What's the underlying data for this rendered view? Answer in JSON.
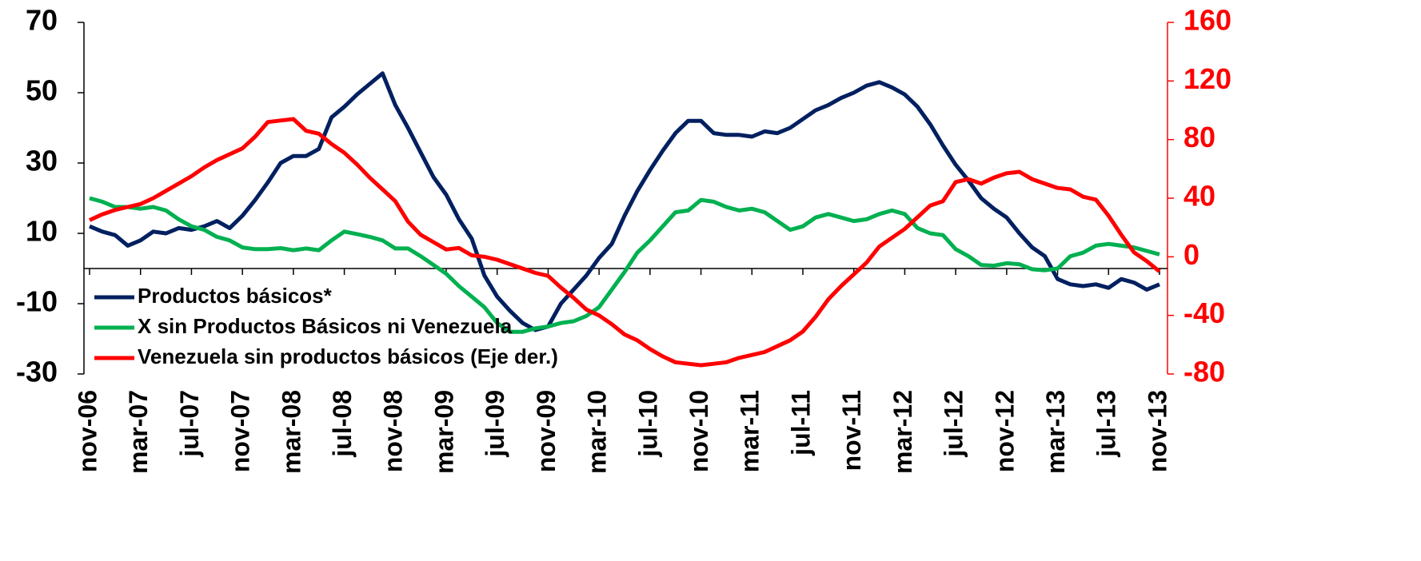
{
  "chart_data": {
    "type": "line",
    "categories": [
      "nov-06",
      null,
      null,
      null,
      "mar-07",
      null,
      null,
      null,
      "jul-07",
      null,
      null,
      null,
      "nov-07",
      null,
      null,
      null,
      "mar-08",
      null,
      null,
      null,
      "jul-08",
      null,
      null,
      null,
      "nov-08",
      null,
      null,
      null,
      "mar-09",
      null,
      null,
      null,
      "jul-09",
      null,
      null,
      null,
      "nov-09",
      null,
      null,
      null,
      "mar-10",
      null,
      null,
      null,
      "jul-10",
      null,
      null,
      null,
      "nov-10",
      null,
      null,
      null,
      "mar-11",
      null,
      null,
      null,
      "jul-11",
      null,
      null,
      null,
      "nov-11",
      null,
      null,
      null,
      "mar-12",
      null,
      null,
      null,
      "jul-12",
      null,
      null,
      null,
      "nov-12",
      null,
      null,
      null,
      "mar-13",
      null,
      null,
      null,
      "jul-13",
      null,
      null,
      null,
      "nov-13"
    ],
    "series": [
      {
        "name": "Productos básicos*",
        "color": "#002060",
        "values": [
          12,
          10.5,
          9.5,
          6.5,
          8,
          10.5,
          10,
          11.5,
          11,
          12,
          13.5,
          11.5,
          15,
          19.5,
          24.5,
          30,
          32,
          32,
          34,
          43,
          46,
          49.5,
          52.5,
          55.5,
          46.5,
          40,
          33,
          26,
          21,
          14,
          8.5,
          -2,
          -8,
          -12,
          -15.5,
          -17.5,
          -16.5,
          -10,
          -6,
          -2,
          3,
          7,
          15,
          22,
          28,
          33.5,
          38.5,
          42,
          42,
          38.5,
          38,
          38,
          37.5,
          39,
          38.5,
          40,
          42.5,
          45,
          46.5,
          48.5,
          50,
          52,
          53,
          51.5,
          49.5,
          46,
          41,
          35,
          29.5,
          25,
          20,
          17,
          14.5,
          10,
          6,
          3.5,
          -3,
          -4.5,
          -5,
          -4.5,
          -5.5,
          -3,
          -4,
          -6,
          -4.5
        ]
      },
      {
        "name": "X sin Productos Básicos ni Venezuela",
        "color": "#00b050",
        "values": [
          20,
          19,
          17.5,
          17.5,
          17,
          17.5,
          16.5,
          14,
          12,
          11,
          9,
          8,
          6,
          5.5,
          5.5,
          5.8,
          5.2,
          5.7,
          5.2,
          8,
          10.5,
          9.8,
          9,
          8,
          5.7,
          5.7,
          3.5,
          1,
          -1.5,
          -5,
          -8,
          -11,
          -15.5,
          -18,
          -18,
          -17,
          -16.5,
          -15.5,
          -15,
          -13.5,
          -11,
          -6,
          -1,
          4.5,
          8,
          12,
          16,
          16.5,
          19.5,
          19,
          17.5,
          16.5,
          17,
          16,
          13.5,
          11,
          12,
          14.5,
          15.5,
          14.5,
          13.5,
          14,
          15.5,
          16.5,
          15.5,
          11.5,
          10,
          9.5,
          5.5,
          3.5,
          1,
          0.8,
          1.5,
          1.2,
          -0.2,
          -0.5,
          0,
          3.5,
          4.5,
          6.5,
          7,
          6.5,
          6,
          5,
          4
        ]
      },
      {
        "name": "Venezuela sin productos básicos  (Eje der.)",
        "color": "#ff0000",
        "axis": "y2",
        "values": [
          25,
          29,
          32,
          34,
          36,
          40,
          45,
          50,
          55,
          61,
          66,
          70,
          74,
          82,
          92,
          93,
          94,
          86,
          84,
          77,
          71,
          63,
          54,
          46,
          38,
          24,
          15,
          10,
          5,
          6,
          1,
          0,
          -2,
          -5,
          -8,
          -11,
          -13,
          -21,
          -28,
          -36,
          -40,
          -46,
          -53,
          -57,
          -63,
          -68,
          -72,
          -73,
          -74,
          -73,
          -72,
          -69,
          -67,
          -65,
          -61,
          -57,
          -51,
          -41,
          -29,
          -20,
          -12,
          -4,
          7,
          13,
          19,
          27,
          35,
          38,
          51,
          53,
          50,
          54,
          57,
          58,
          53,
          50,
          47,
          46,
          41,
          39,
          28,
          15,
          3,
          -3,
          -10
        ]
      }
    ],
    "ylim": [
      -30,
      70
    ],
    "yticks": [
      -30,
      -10,
      10,
      30,
      50,
      70
    ],
    "y2lim": [
      -80,
      160
    ],
    "y2ticks": [
      -80,
      -40,
      0,
      40,
      80,
      120,
      160
    ],
    "y2color": "#ff0000",
    "legend": "lower left"
  }
}
